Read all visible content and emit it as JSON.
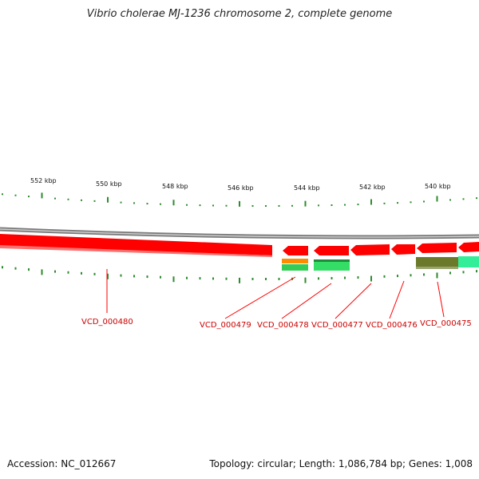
{
  "title": "Vibrio cholerae MJ-1236 chromosome 2, complete genome",
  "footer": {
    "accession": "Accession: NC_012667",
    "summary": "Topology: circular; Length: 1,086,784 bp; Genes: 1,008"
  },
  "scale_labels": [
    "552 kbp",
    "550 kbp",
    "548 kbp",
    "546 kbp",
    "544 kbp",
    "542 kbp",
    "540 kbp"
  ],
  "gene_labels": [
    "VCD_000480",
    "VCD_000479",
    "VCD_000478",
    "VCD_000477",
    "VCD_000476",
    "VCD_000475"
  ],
  "colors": {
    "backbone": "#8a8a8a",
    "cds": "#ff0000",
    "cds_dark": "#c00000",
    "tick": "#2e8b2e",
    "label": "#cc0000",
    "orange_feature": "#ff8c00",
    "green_feature": "#33cc55",
    "olive_feature": "#6b7a2a",
    "aqua_feature": "#33ee99"
  }
}
